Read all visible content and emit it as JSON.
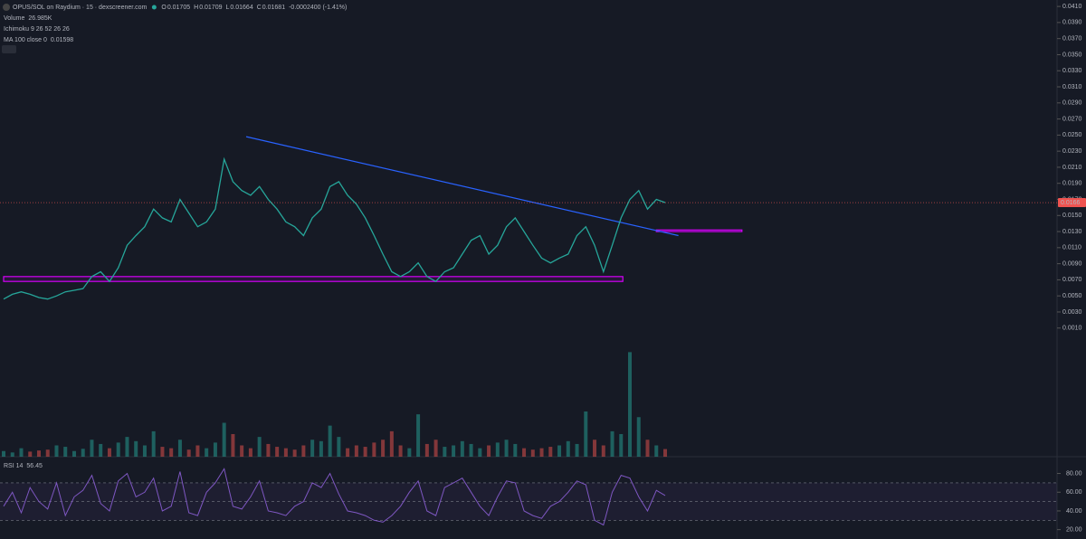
{
  "header": {
    "title": "OPUS/SOL on Raydium · 15 · dexscreener.com",
    "ohlc": [
      {
        "key": "O",
        "value": "0.01705"
      },
      {
        "key": "H",
        "value": "0.01709"
      },
      {
        "key": "L",
        "value": "0.01664"
      },
      {
        "key": "C",
        "value": "0.01681"
      }
    ],
    "change": "-0.0002400 (-1.41%)",
    "indicators": [
      {
        "name": "Volume",
        "value": "26.985K"
      },
      {
        "name": "Ichimoku 9 26 52 26 26",
        "value": ""
      },
      {
        "name": "MA 100 close 0",
        "value": "0.01598"
      }
    ]
  },
  "chart_data": {
    "type": "line",
    "color": "#26a69a",
    "values": [
      0.0046,
      0.0052,
      0.0055,
      0.0052,
      0.0048,
      0.0046,
      0.005,
      0.0055,
      0.0057,
      0.0059,
      0.0074,
      0.008,
      0.0068,
      0.0085,
      0.0113,
      0.0125,
      0.0136,
      0.0158,
      0.0147,
      0.0142,
      0.017,
      0.0153,
      0.0136,
      0.0142,
      0.0158,
      0.022,
      0.0192,
      0.0181,
      0.0175,
      0.0186,
      0.017,
      0.0158,
      0.0142,
      0.0136,
      0.0125,
      0.0147,
      0.0158,
      0.0186,
      0.0192,
      0.0175,
      0.0164,
      0.0147,
      0.0125,
      0.0102,
      0.008,
      0.0074,
      0.008,
      0.0091,
      0.0074,
      0.0068,
      0.008,
      0.0085,
      0.0102,
      0.0119,
      0.0125,
      0.0102,
      0.0113,
      0.0136,
      0.0147,
      0.013,
      0.0113,
      0.0097,
      0.0091,
      0.0097,
      0.0102,
      0.0125,
      0.0136,
      0.0113,
      0.008,
      0.0113,
      0.0147,
      0.017,
      0.0181,
      0.0158,
      0.017,
      0.0166
    ],
    "ylim": [
      -0.015,
      0.0418
    ],
    "yticks": [
      {
        "value": 0.001,
        "label": "0.0010"
      },
      {
        "value": 0.003,
        "label": "0.0030"
      },
      {
        "value": 0.005,
        "label": "0.0050"
      },
      {
        "value": 0.007,
        "label": "0.0070"
      },
      {
        "value": 0.009,
        "label": "0.0090"
      },
      {
        "value": 0.011,
        "label": "0.0110"
      },
      {
        "value": 0.013,
        "label": "0.0130"
      },
      {
        "value": 0.015,
        "label": "0.0150"
      },
      {
        "value": 0.017,
        "label": "0.0170"
      },
      {
        "value": 0.019,
        "label": "0.0190"
      },
      {
        "value": 0.021,
        "label": "0.0210"
      },
      {
        "value": 0.023,
        "label": "0.0230"
      },
      {
        "value": 0.025,
        "label": "0.0250"
      },
      {
        "value": 0.027,
        "label": "0.0270"
      },
      {
        "value": 0.029,
        "label": "0.0290"
      },
      {
        "value": 0.031,
        "label": "0.0310"
      },
      {
        "value": 0.033,
        "label": "0.0330"
      },
      {
        "value": 0.035,
        "label": "0.0350"
      },
      {
        "value": 0.037,
        "label": "0.0370"
      },
      {
        "value": 0.039,
        "label": "0.0390"
      },
      {
        "value": 0.041,
        "label": "0.0410"
      }
    ],
    "last_price": 0.0166,
    "trendline": {
      "x": [
        27.5,
        76.5
      ],
      "y": [
        0.0248,
        0.0125
      ],
      "color": "#2962ff"
    },
    "zones": [
      {
        "x": [
          0,
          70.2
        ],
        "y": [
          0.0068,
          0.0074
        ],
        "color": "#d500f9"
      },
      {
        "x": [
          74,
          83.7
        ],
        "y": [
          0.013,
          0.0132
        ],
        "color": "#d500f9"
      }
    ],
    "volume": {
      "color": "#26a69a",
      "ylim": [
        0,
        400
      ],
      "values": [
        20,
        15,
        30,
        18,
        22,
        25,
        40,
        35,
        20,
        28,
        60,
        45,
        30,
        50,
        70,
        55,
        40,
        90,
        35,
        30,
        60,
        25,
        40,
        30,
        50,
        120,
        80,
        40,
        30,
        70,
        45,
        35,
        30,
        25,
        40,
        60,
        55,
        110,
        70,
        30,
        40,
        35,
        50,
        60,
        90,
        40,
        30,
        150,
        45,
        60,
        35,
        40,
        55,
        45,
        30,
        40,
        50,
        60,
        45,
        30,
        25,
        30,
        35,
        40,
        55,
        45,
        160,
        60,
        40,
        90,
        80,
        370,
        140,
        60,
        40,
        27
      ]
    },
    "rsi": {
      "label": "RSI 14",
      "value_label": "56.45",
      "color": "#7e57c2",
      "ylim": [
        10,
        96
      ],
      "levels": [
        30,
        50,
        70
      ],
      "yticks": [
        {
          "value": 20,
          "label": "20.00"
        },
        {
          "value": 40,
          "label": "40.00"
        },
        {
          "value": 60,
          "label": "60.00"
        },
        {
          "value": 80,
          "label": "80.00"
        }
      ],
      "values": [
        45,
        60,
        38,
        65,
        50,
        42,
        70,
        35,
        55,
        62,
        78,
        48,
        40,
        72,
        80,
        55,
        60,
        75,
        40,
        45,
        82,
        38,
        35,
        60,
        70,
        85,
        45,
        42,
        55,
        72,
        40,
        38,
        35,
        45,
        50,
        70,
        65,
        80,
        58,
        40,
        38,
        35,
        30,
        28,
        35,
        45,
        60,
        72,
        40,
        35,
        65,
        70,
        75,
        60,
        45,
        35,
        55,
        72,
        70,
        40,
        35,
        32,
        45,
        50,
        60,
        72,
        68,
        30,
        25,
        60,
        78,
        75,
        55,
        40,
        62,
        56.45
      ]
    }
  }
}
